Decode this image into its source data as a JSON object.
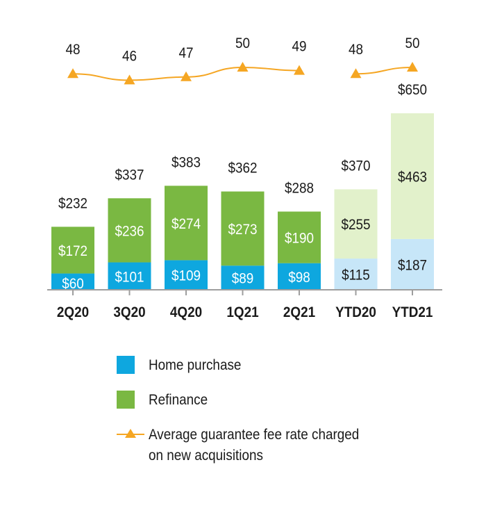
{
  "chart_data": {
    "type": "bar",
    "stacked": true,
    "categories": [
      "2Q20",
      "3Q20",
      "4Q20",
      "1Q21",
      "2Q21",
      "YTD20",
      "YTD21"
    ],
    "series": [
      {
        "name": "Home purchase",
        "values": [
          60,
          101,
          109,
          89,
          98,
          115,
          187
        ],
        "labels": [
          "$60",
          "$101",
          "$109",
          "$89",
          "$98",
          "$115",
          "$187"
        ],
        "color": "#0ea7df",
        "ytd_color": "#c7e6f8"
      },
      {
        "name": "Refinance",
        "values": [
          172,
          236,
          274,
          273,
          190,
          255,
          463
        ],
        "labels": [
          "$172",
          "$236",
          "$274",
          "$273",
          "$190",
          "$255",
          "$463"
        ],
        "color": "#7ab842",
        "ytd_color": "#e2f1cb"
      }
    ],
    "totals": [
      232,
      337,
      383,
      362,
      288,
      370,
      650
    ],
    "total_labels": [
      "$232",
      "$337",
      "$383",
      "$362",
      "$288",
      "$370",
      "$650"
    ],
    "line_series": {
      "name": "Average guarantee fee rate charged on new acquisitions",
      "values": [
        48,
        46,
        47,
        50,
        49,
        48,
        50
      ],
      "labels": [
        "48",
        "46",
        "47",
        "50",
        "49",
        "48",
        "50"
      ],
      "color": "#f5a623",
      "segments": [
        [
          0,
          4
        ],
        [
          5,
          6
        ]
      ]
    },
    "ylim": [
      0,
      650
    ],
    "title": "",
    "xlabel": "",
    "ylabel": "",
    "grid": false,
    "legend_placement": "bottom"
  },
  "legend": {
    "items": [
      {
        "label": "Home purchase",
        "color": "#0ea7df",
        "kind": "swatch"
      },
      {
        "label": "Refinance",
        "color": "#7ab842",
        "kind": "swatch"
      },
      {
        "label": "Average guarantee fee rate charged on new acquisitions",
        "line1": "Average guarantee fee rate charged",
        "line2": "on new acquisitions",
        "color": "#f5a623",
        "kind": "line-marker"
      }
    ]
  }
}
